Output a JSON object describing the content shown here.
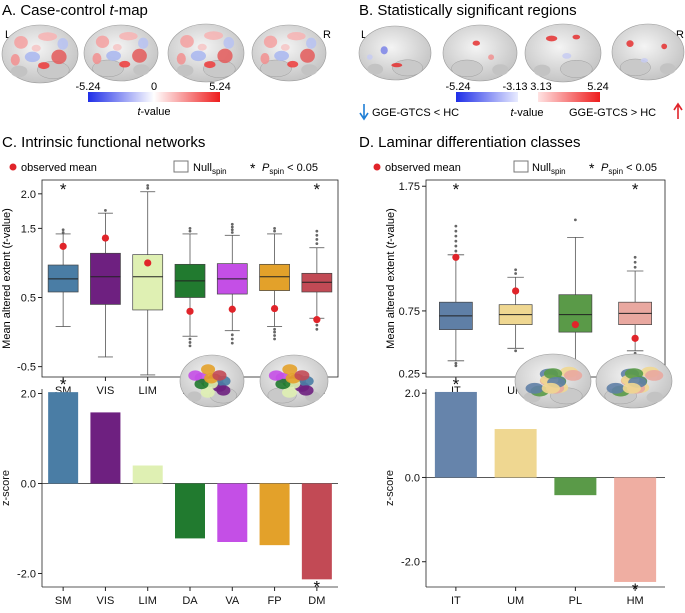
{
  "panels": {
    "A": {
      "title_prefix": "A. Case-control ",
      "title_italic": "t",
      "title_suffix": "-map",
      "hemi_left": "L",
      "hemi_right": "R",
      "colorbar": {
        "min": "-5.24",
        "mid": "0",
        "max": "5.24",
        "label_italic": "t",
        "label_suffix": "-value",
        "colors": {
          "neg": "#1f2ee8",
          "pos": "#ee1c1c"
        }
      }
    },
    "B": {
      "title": "B. Statistically significant regions",
      "hemi_left": "L",
      "hemi_right": "R",
      "neg_min": "-5.24",
      "neg_max": "-3.13",
      "pos_min": "3.13",
      "pos_max": "5.24",
      "label_italic": "t",
      "label_suffix": "-value",
      "left_text": "GGE-GTCS < HC",
      "right_text": "GGE-GTCS > HC",
      "arrow_down_icon": "arrow-down-icon",
      "arrow_up_icon": "arrow-up-icon",
      "colors": {
        "down": "#1f7fd6",
        "up": "#e0242a"
      }
    },
    "C": {
      "title": "C. Intrinsic functional networks",
      "legend": {
        "observed": "observed mean",
        "null_main": "Null",
        "null_sub": "spin",
        "sig_star": "*",
        "p_main": "P",
        "p_sub": "spin",
        "p_rest": " < 0.05"
      }
    },
    "D": {
      "title": "D. Laminar differentiation classes",
      "legend": {
        "observed": "observed mean",
        "null_main": "Null",
        "null_sub": "spin",
        "sig_star": "*",
        "p_main": "P",
        "p_sub": "spin",
        "p_rest": " < 0.05"
      }
    }
  },
  "chart_data": [
    {
      "id": "C-box",
      "type": "boxplot",
      "ylabel_prefix": "Mean altered extent (",
      "ylabel_italic": "t",
      "ylabel_suffix": "-value)",
      "ylim": [
        -0.65,
        2.2
      ],
      "yticks": [
        "-0.5",
        "0.5",
        "1.5",
        "2.0"
      ],
      "ytick_values": [
        -0.5,
        0.5,
        1.5,
        2.0
      ],
      "categories": [
        "SM",
        "VIS",
        "LIM",
        "DA",
        "VA",
        "FP",
        "DM"
      ],
      "colors": [
        "#4a7da5",
        "#6e2080",
        "#dff0b3",
        "#217a2f",
        "#c44fe6",
        "#e3a12a",
        "#c24a55"
      ],
      "boxes": [
        {
          "q1": 0.58,
          "median": 0.77,
          "q3": 0.97,
          "wlo": 0.08,
          "whi": 1.42,
          "outlier_hi": [
            1.44,
            1.48
          ],
          "outlier_lo": []
        },
        {
          "q1": 0.4,
          "median": 0.8,
          "q3": 1.14,
          "wlo": -0.36,
          "whi": 1.72,
          "outlier_hi": [
            1.76
          ],
          "outlier_lo": []
        },
        {
          "q1": 0.32,
          "median": 0.8,
          "q3": 1.12,
          "wlo": -0.62,
          "whi": 2.03,
          "outlier_hi": [
            2.08,
            2.12
          ],
          "outlier_lo": []
        },
        {
          "q1": 0.5,
          "median": 0.74,
          "q3": 0.98,
          "wlo": -0.06,
          "whi": 1.42,
          "outlier_hi": [
            1.46,
            1.5
          ],
          "outlier_lo": [
            -0.1,
            -0.15,
            -0.2
          ]
        },
        {
          "q1": 0.55,
          "median": 0.77,
          "q3": 0.99,
          "wlo": 0.02,
          "whi": 1.4,
          "outlier_hi": [
            1.44,
            1.48,
            1.52,
            1.56
          ],
          "outlier_lo": [
            -0.04,
            -0.1,
            -0.16
          ]
        },
        {
          "q1": 0.6,
          "median": 0.8,
          "q3": 0.98,
          "wlo": 0.08,
          "whi": 1.42,
          "outlier_hi": [
            1.46,
            1.5
          ],
          "outlier_lo": [
            0.04,
            0.0,
            -0.05,
            -0.1
          ]
        },
        {
          "q1": 0.58,
          "median": 0.72,
          "q3": 0.85,
          "wlo": 0.2,
          "whi": 1.22,
          "outlier_hi": [
            1.28,
            1.34,
            1.4,
            1.46
          ],
          "outlier_lo": [
            0.16,
            0.1,
            0.04
          ]
        }
      ],
      "observed": [
        1.24,
        1.36,
        1.0,
        0.3,
        0.33,
        0.34,
        0.18
      ],
      "significant": [
        true,
        false,
        false,
        false,
        false,
        false,
        true
      ]
    },
    {
      "id": "C-bar",
      "type": "bar",
      "ylabel": "z-score",
      "ylim": [
        -2.3,
        2.1
      ],
      "yticks": [
        "2.0",
        "0.0",
        "-2.0"
      ],
      "ytick_values": [
        2.0,
        0.0,
        -2.0
      ],
      "categories": [
        "SM",
        "VIS",
        "LIM",
        "DA",
        "VA",
        "FP",
        "DM"
      ],
      "values": [
        2.03,
        1.58,
        0.4,
        -1.22,
        -1.3,
        -1.37,
        -2.13
      ],
      "colors": [
        "#4a7da5",
        "#6e2080",
        "#dff0b3",
        "#217a2f",
        "#c44fe6",
        "#e3a12a",
        "#c24a55"
      ],
      "significant": [
        true,
        false,
        false,
        false,
        false,
        false,
        true
      ]
    },
    {
      "id": "D-box",
      "type": "boxplot",
      "ylabel_prefix": "Mean altered extent (",
      "ylabel_italic": "t",
      "ylabel_suffix": "-value)",
      "ylim": [
        0.22,
        1.8
      ],
      "yticks": [
        "0.25",
        "0.75",
        "1.75"
      ],
      "ytick_values": [
        0.25,
        0.75,
        1.75
      ],
      "categories": [
        "IT",
        "UM",
        "PL",
        "HM"
      ],
      "colors": [
        "#5f7fa6",
        "#efd791",
        "#5a9a48",
        "#e9a8a0"
      ],
      "boxes": [
        {
          "q1": 0.6,
          "median": 0.71,
          "q3": 0.82,
          "wlo": 0.35,
          "whi": 1.2,
          "outlier_hi": [
            1.23,
            1.27,
            1.31,
            1.35,
            1.39,
            1.43
          ],
          "outlier_lo": [
            0.33,
            0.31
          ]
        },
        {
          "q1": 0.64,
          "median": 0.72,
          "q3": 0.8,
          "wlo": 0.45,
          "whi": 1.02,
          "outlier_hi": [
            1.05,
            1.08
          ],
          "outlier_lo": [
            0.43
          ]
        },
        {
          "q1": 0.58,
          "median": 0.72,
          "q3": 0.88,
          "wlo": 0.27,
          "whi": 1.34,
          "outlier_hi": [
            1.48
          ],
          "outlier_lo": [
            0.22
          ]
        },
        {
          "q1": 0.64,
          "median": 0.73,
          "q3": 0.82,
          "wlo": 0.43,
          "whi": 1.07,
          "outlier_hi": [
            1.1,
            1.14,
            1.18
          ],
          "outlier_lo": [
            0.41
          ]
        }
      ],
      "observed": [
        1.18,
        0.91,
        0.64,
        0.53
      ],
      "significant": [
        true,
        false,
        false,
        true
      ]
    },
    {
      "id": "D-bar",
      "type": "bar",
      "ylabel": "z-score",
      "ylim": [
        -2.6,
        2.1
      ],
      "yticks": [
        "2.0",
        "0.0",
        "-2.0"
      ],
      "ytick_values": [
        2.0,
        0.0,
        -2.0
      ],
      "categories": [
        "IT",
        "UM",
        "PL",
        "HM"
      ],
      "values": [
        2.03,
        1.15,
        -0.42,
        -2.48
      ],
      "colors": [
        "#6684ab",
        "#efd791",
        "#5a9a48",
        "#efaea2"
      ],
      "significant": [
        true,
        false,
        false,
        true
      ]
    }
  ],
  "brain_icons": {
    "A": "brain-surface-icon",
    "B": "brain-surface-icon",
    "C": "brain-network-icon",
    "D": "brain-laminar-icon"
  },
  "observed_color": "#e0242a"
}
